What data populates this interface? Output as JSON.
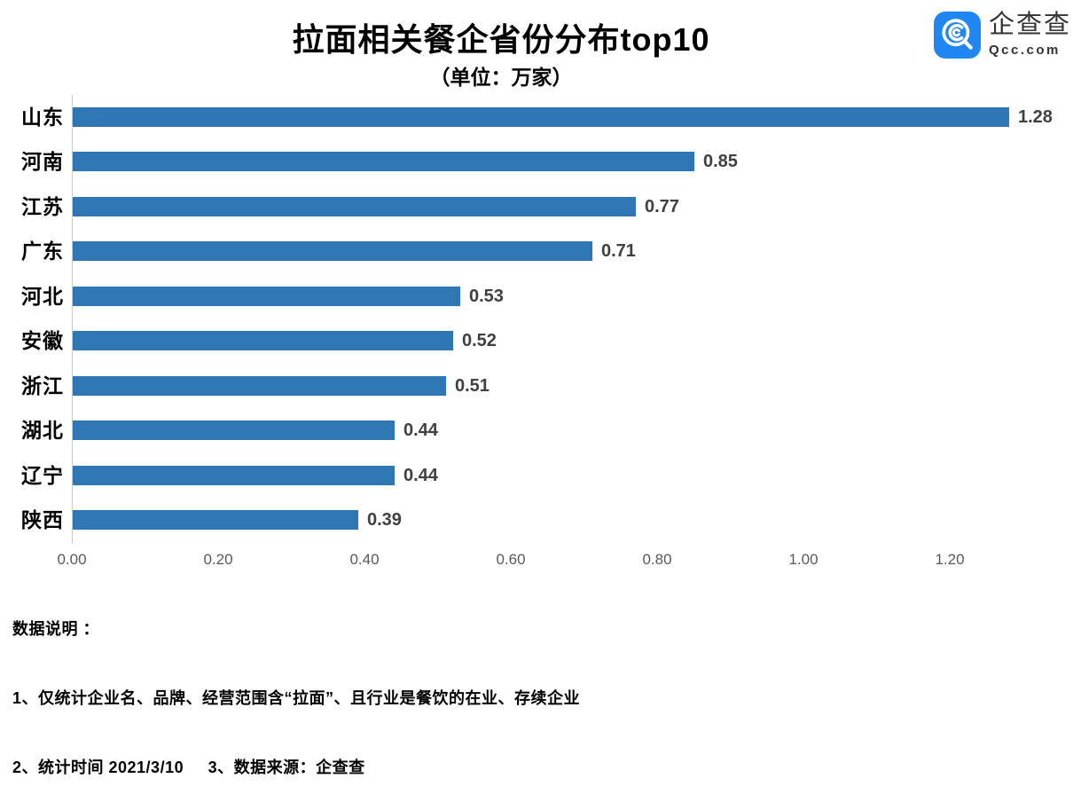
{
  "title": "拉面相关餐企省份分布top10",
  "subtitle": "（单位：万家）",
  "logo": {
    "name": "企查查",
    "domain": "Qcc.com",
    "brand_color": "#2086F1"
  },
  "chart_data": {
    "type": "bar",
    "orientation": "horizontal",
    "title": "拉面相关餐企省份分布top10",
    "unit": "万家",
    "categories": [
      "山东",
      "河南",
      "江苏",
      "广东",
      "河北",
      "安徽",
      "浙江",
      "湖北",
      "辽宁",
      "陕西"
    ],
    "values": [
      1.28,
      0.85,
      0.77,
      0.71,
      0.53,
      0.52,
      0.51,
      0.44,
      0.44,
      0.39
    ],
    "value_labels": [
      "1.28",
      "0.85",
      "0.77",
      "0.71",
      "0.53",
      "0.52",
      "0.51",
      "0.44",
      "0.44",
      "0.39"
    ],
    "x_ticks": [
      "0.00",
      "0.20",
      "0.40",
      "0.60",
      "0.80",
      "1.00",
      "1.20"
    ],
    "xlim": [
      0,
      1.28
    ],
    "grid": false,
    "legend": false,
    "bar_color": "#2F76B5",
    "value_label_color": "#404040",
    "tick_label_color": "#595959"
  },
  "notes": {
    "heading": "数据说明 ：",
    "line1": "1、仅统计企业名、品牌、经营范围含“拉面”、且行业是餐饮的在业、存续企业",
    "line2": "2、统计时间 2021/3/10     3、数据来源：企查查"
  }
}
